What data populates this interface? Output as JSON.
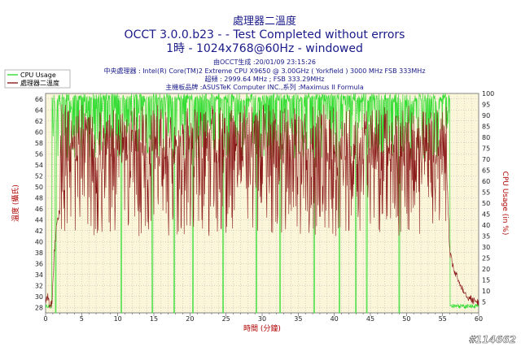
{
  "colors": {
    "background": "#ffffff",
    "plot_background": "#fbf5d9",
    "grid": "#b0b0b0",
    "cpu_usage": "#33dd33",
    "temperature": "#8b1a1a",
    "title": "#1a1a8a",
    "axis_label": "#b00000"
  },
  "header": {
    "title_cn": "處理器二溫度",
    "title_main": "OCCT 3.0.0.b23 -  - Test Completed without errors",
    "title_sub": "1時 - 1024x768@60Hz - windowed",
    "info_generated": "由OCCT生成 :20/01/09 23:15:26",
    "info_cpu": "中央處理器 : Intel(R) Core(TM)2 Extreme CPU X9650 @ 3.00GHz ( Yorkfield ) 3000 MHz FSB 333MHz",
    "info_oc": "超頻 : 2999.64 MHz ; FSB 333.29MHz",
    "info_board": "主機板品牌 :ASUSTeK Computer INC.,系列 :Maximus II Formula"
  },
  "watermark": "#114662",
  "chart_data": {
    "type": "line",
    "title": "處理器二溫度",
    "xlabel": "時間 (分鐘)",
    "ylabel_left": "溫度 (攝氏)",
    "ylabel_right": "CPU Usage (in %)",
    "xlim": [
      0,
      60
    ],
    "ylim_left": [
      27,
      67
    ],
    "ylim_right": [
      0,
      100
    ],
    "x_ticks": [
      0,
      5,
      10,
      15,
      20,
      25,
      30,
      35,
      40,
      45,
      50,
      55,
      60
    ],
    "y_ticks_left": [
      28,
      30,
      32,
      34,
      36,
      38,
      40,
      42,
      44,
      46,
      48,
      50,
      52,
      54,
      56,
      58,
      60,
      62,
      64,
      66
    ],
    "y_ticks_right": [
      5,
      10,
      15,
      20,
      25,
      30,
      35,
      40,
      45,
      50,
      55,
      60,
      65,
      70,
      75,
      80,
      85,
      90,
      95,
      100
    ],
    "grid": true,
    "legend_position": "top-left",
    "series": [
      {
        "name": "CPU Usage",
        "axis": "right",
        "color": "#33dd33",
        "style": "noisy_band",
        "low": 70,
        "high": 100,
        "load_start": 0.9,
        "load_end": 56.0,
        "idle_value": 2,
        "dips_to_zero": [
          1.4,
          10.5,
          14.8,
          17.8,
          20.4,
          24.6,
          29.2,
          32.5,
          37.2,
          40.7,
          43.0,
          44.5,
          49.0
        ]
      },
      {
        "name": "處理器二溫度",
        "axis": "left",
        "color": "#8b1a1a",
        "style": "noisy_band",
        "points": [
          [
            0.0,
            29
          ],
          [
            0.3,
            30
          ],
          [
            0.6,
            28
          ],
          [
            0.9,
            29
          ],
          [
            1.2,
            38
          ],
          [
            1.6,
            44
          ],
          [
            2.5,
            48
          ],
          [
            4,
            52
          ],
          [
            10,
            54
          ],
          [
            20,
            55
          ],
          [
            30,
            55
          ],
          [
            40,
            55
          ],
          [
            50,
            55
          ],
          [
            55.0,
            56
          ],
          [
            55.6,
            52
          ],
          [
            56.0,
            38
          ],
          [
            56.5,
            35
          ],
          [
            57.5,
            32
          ],
          [
            58.5,
            30
          ],
          [
            59.5,
            29
          ],
          [
            60.0,
            29
          ]
        ],
        "band_low": 41,
        "band_high": 65
      }
    ]
  }
}
